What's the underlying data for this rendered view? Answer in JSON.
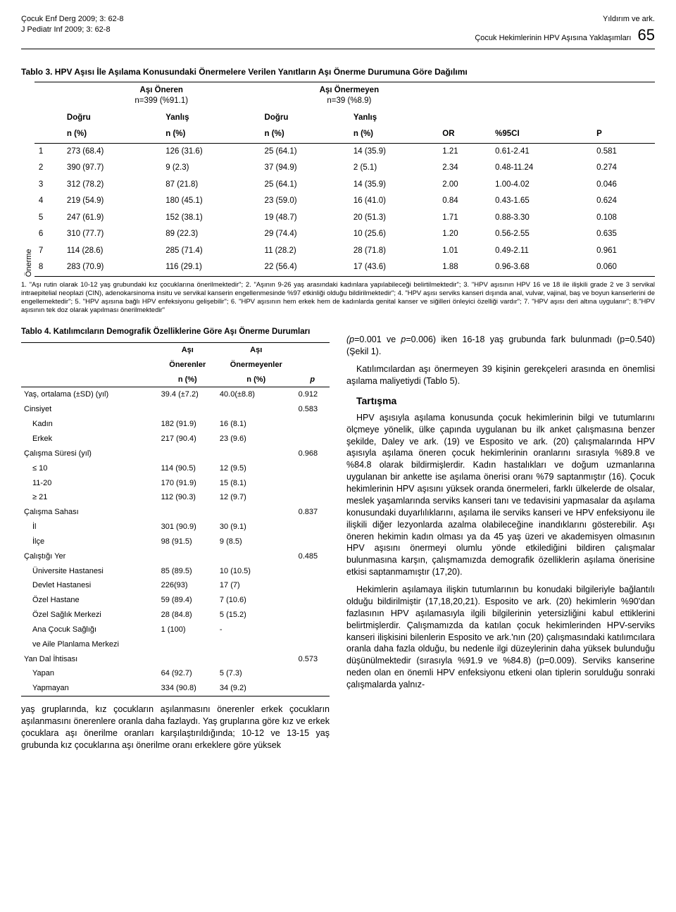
{
  "header": {
    "left1": "Çocuk Enf Derg 2009; 3: 62-8",
    "left2": "J Pediatr Inf 2009; 3: 62-8",
    "right1": "Yıldırım ve ark.",
    "right2": "Çocuk Hekimlerinin HPV Aşısına Yaklaşımları",
    "page": "65"
  },
  "table3": {
    "title": "Tablo 3. HPV Aşısı İle Aşılama Konusundaki Önermelere Verilen Yanıtların Aşı Önerme Durumuna Göre Dağılımı",
    "ylabel": "Önerme",
    "groupA": "Aşı Öneren",
    "groupA_n": "n=399 (%91.1)",
    "groupB": "Aşı Önermeyen",
    "groupB_n": "n=39 (%8.9)",
    "cols": {
      "dogru": "Doğru",
      "yanlis": "Yanlış",
      "n": "n (%)",
      "or": "OR",
      "ci": "%95CI",
      "p": "P"
    },
    "rows": [
      {
        "k": "1",
        "a": "273 (68.4)",
        "b": "126 (31.6)",
        "c": "25 (64.1)",
        "d": "14 (35.9)",
        "or": "1.21",
        "ci": "0.61-2.41",
        "p": "0.581"
      },
      {
        "k": "2",
        "a": "390 (97.7)",
        "b": "9 (2.3)",
        "c": "37 (94.9)",
        "d": "2 (5.1)",
        "or": "2.34",
        "ci": "0.48-11.24",
        "p": "0.274"
      },
      {
        "k": "3",
        "a": "312 (78.2)",
        "b": "87 (21.8)",
        "c": "25 (64.1)",
        "d": "14 (35.9)",
        "or": "2.00",
        "ci": "1.00-4.02",
        "p": "0.046"
      },
      {
        "k": "4",
        "a": "219 (54.9)",
        "b": "180 (45.1)",
        "c": "23 (59.0)",
        "d": "16 (41.0)",
        "or": "0.84",
        "ci": "0.43-1.65",
        "p": "0.624"
      },
      {
        "k": "5",
        "a": "247 (61.9)",
        "b": "152 (38.1)",
        "c": "19 (48.7)",
        "d": "20 (51.3)",
        "or": "1.71",
        "ci": "0.88-3.30",
        "p": "0.108"
      },
      {
        "k": "6",
        "a": "310 (77.7)",
        "b": "89 (22.3)",
        "c": "29 (74.4)",
        "d": "10 (25.6)",
        "or": "1.20",
        "ci": "0.56-2.55",
        "p": "0.635"
      },
      {
        "k": "7",
        "a": "114 (28.6)",
        "b": "285 (71.4)",
        "c": "11 (28.2)",
        "d": "28 (71.8)",
        "or": "1.01",
        "ci": "0.49-2.11",
        "p": "0.961"
      },
      {
        "k": "8",
        "a": "283 (70.9)",
        "b": "116 (29.1)",
        "c": "22 (56.4)",
        "d": "17 (43.6)",
        "or": "1.88",
        "ci": "0.96-3.68",
        "p": "0.060"
      }
    ],
    "footnote": "1. \"Aşı rutin olarak 10-12 yaş grubundaki kız çocuklarına önerilmektedir\"; 2. \"Aşının 9-26 yaş arasındaki kadınlara yapılabileceği belirtilmektedir\"; 3. \"HPV aşısının HPV 16 ve 18 ile ilişkili grade 2 ve 3  servikal intraepitelial neoplazi (CIN), adenokarsinoma insitu ve servikal kanserin engellenmesinde %97 etkinliği olduğu bildirilmektedir\"; 4. \"HPV aşısı serviks kanseri dışında anal, vulvar, vajinal, baş ve boyun kanserlerini de engellemektedir\"; 5. \"HPV aşısına bağlı HPV enfeksiyonu gelişebilir\"; 6. \"HPV aşısının hem erkek hem de kadınlarda genital kanser ve siğilleri önleyici özelliği vardır\"; 7. \"HPV aşısı deri altına uygulanır\"; 8.\"HPV aşısının tek doz olarak yapılması önerilmektedir\""
  },
  "table4": {
    "title": "Tablo 4. Katılımcıların Demografik Özelliklerine Göre Aşı Önerme Durumları",
    "h1": "Aşı",
    "h1b": "Önerenler",
    "h2": "Aşı",
    "h2b": "Önermeyenler",
    "hn": "n (%)",
    "hp": "p",
    "rows": [
      {
        "l": "Yaş, ortalama (±SD) (yıl)",
        "a": "39.4 (±7.2)",
        "b": "40.0(±8.8)",
        "p": "0.912",
        "indent": false
      },
      {
        "l": "Cinsiyet",
        "a": "",
        "b": "",
        "p": "0.583",
        "indent": false
      },
      {
        "l": "Kadın",
        "a": "182 (91.9)",
        "b": "16 (8.1)",
        "p": "",
        "indent": true
      },
      {
        "l": "Erkek",
        "a": "217 (90.4)",
        "b": "23 (9.6)",
        "p": "",
        "indent": true
      },
      {
        "l": "Çalışma Süresi (yıl)",
        "a": "",
        "b": "",
        "p": "0.968",
        "indent": false
      },
      {
        "l": "≤ 10",
        "a": "114 (90.5)",
        "b": "12 (9.5)",
        "p": "",
        "indent": true
      },
      {
        "l": "11-20",
        "a": "170 (91.9)",
        "b": "15 (8.1)",
        "p": "",
        "indent": true
      },
      {
        "l": "≥ 21",
        "a": "112 (90.3)",
        "b": "12 (9.7)",
        "p": "",
        "indent": true
      },
      {
        "l": "Çalışma Sahası",
        "a": "",
        "b": "",
        "p": "0.837",
        "indent": false
      },
      {
        "l": "İl",
        "a": "301 (90.9)",
        "b": "30 (9.1)",
        "p": "",
        "indent": true
      },
      {
        "l": "İlçe",
        "a": "98 (91.5)",
        "b": "9 (8.5)",
        "p": "",
        "indent": true
      },
      {
        "l": "Çalıştığı Yer",
        "a": "",
        "b": "",
        "p": "0.485",
        "indent": false
      },
      {
        "l": "Üniversite Hastanesi",
        "a": "85 (89.5)",
        "b": "10 (10.5)",
        "p": "",
        "indent": true
      },
      {
        "l": "Devlet Hastanesi",
        "a": "226(93)",
        "b": "17 (7)",
        "p": "",
        "indent": true
      },
      {
        "l": "Özel Hastane",
        "a": "59 (89.4)",
        "b": "7 (10.6)",
        "p": "",
        "indent": true
      },
      {
        "l": "Özel Sağlık Merkezi",
        "a": "28 (84.8)",
        "b": "5 (15.2)",
        "p": "",
        "indent": true
      },
      {
        "l": "Ana Çocuk Sağlığı",
        "a": "1 (100)",
        "b": "-",
        "p": "",
        "indent": true
      },
      {
        "l": "ve Aile Planlama  Merkezi",
        "a": "",
        "b": "",
        "p": "",
        "indent": true
      },
      {
        "l": "Yan Dal İhtisası",
        "a": "",
        "b": "",
        "p": "0.573",
        "indent": false
      },
      {
        "l": "Yapan",
        "a": "64 (92.7)",
        "b": "5 (7.3)",
        "p": "",
        "indent": true
      },
      {
        "l": "Yapmayan",
        "a": "334 (90.8)",
        "b": "34 (9.2)",
        "p": "",
        "indent": true
      }
    ]
  },
  "body": {
    "left_p": "yaş gruplarında, kız çocukların aşılanmasını önerenler erkek çocukların aşılanmasını önerenlere oranla daha fazlaydı. Yaş gruplarına göre kız ve erkek çocuklara aşı önerilme oranları karşılaştırıldığında; 10-12 ve 13-15 yaş grubunda kız çocuklarına aşı önerilme oranı erkeklere göre yüksek",
    "right_p1": "(p=0.001 ve p=0.006) iken 16-18 yaş grubunda fark bulunmadı (p=0.540) (Şekil 1).",
    "right_p2": "Katılımcılardan aşı önermeyen 39 kişinin gerekçeleri arasında en önemlisi aşılama maliyetiydi (Tablo 5).",
    "section": "Tartışma",
    "right_p3": "HPV aşısıyla aşılama konusunda çocuk hekimlerinin bilgi ve tutumlarını ölçmeye yönelik, ülke çapında uygulanan bu ilk anket çalışmasına benzer şekilde, Daley ve ark. (19) ve Esposito ve ark. (20) çalışmalarında HPV aşısıyla aşılama öneren çocuk hekimlerinin oranlarını sırasıyla %89.8 ve %84.8 olarak bildirmişlerdir. Kadın hastalıkları ve doğum uzmanlarına uygulanan bir ankette ise aşılama önerisi oranı %79 saptanmıştır (16). Çocuk hekimlerinin HPV aşısını yüksek oranda önermeleri, farklı ülkelerde de olsalar, meslek yaşamlarında serviks kanseri tanı ve tedavisini yapmasalar da aşılama konusundaki duyarlılıklarını, aşılama ile serviks kanseri ve HPV enfeksiyonu ile ilişkili diğer lezyonlarda azalma olabileceğine inandıklarını gösterebilir. Aşı öneren hekimin kadın olması ya da 45 yaş üzeri ve akademisyen olmasının HPV aşısını önermeyi olumlu yönde etkilediğini bildiren çalışmalar bulunmasına karşın, çalışmamızda demografik özelliklerin aşılama önerisine etkisi saptanmamıştır (17,20).",
    "right_p4": "Hekimlerin aşılamaya ilişkin tutumlarının bu konudaki bilgileriyle bağlantılı olduğu bildirilmiştir (17,18,20,21). Esposito ve ark. (20) hekimlerin %90'dan fazlasının HPV aşılamasıyla ilgili bilgilerinin yetersizliğini kabul ettiklerini belirtmişlerdir. Çalışmamızda da katılan çocuk hekimlerinden HPV-serviks kanseri ilişkisini bilenlerin Esposito ve ark.'nın (20) çalışmasındaki katılımcılara oranla daha fazla olduğu, bu nedenle ilgi düzeylerinin daha yüksek bulunduğu düşünülmektedir (sırasıyla %91.9 ve %84.8) (p=0.009). Serviks kanserine neden olan en önemli HPV enfeksiyonu etkeni olan tiplerin sorulduğu sonraki çalışmalarda yalnız-"
  }
}
